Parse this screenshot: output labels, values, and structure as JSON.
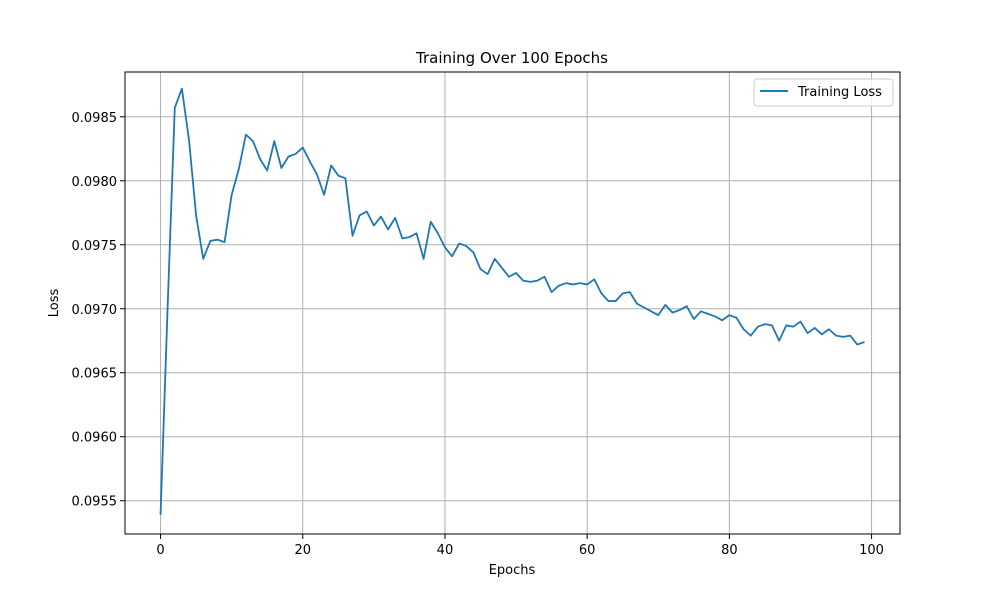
{
  "chart_data": {
    "type": "line",
    "title": "Training Over 100 Epochs",
    "xlabel": "Epochs",
    "ylabel": "Loss",
    "xlim": [
      -5,
      104
    ],
    "ylim": [
      0.09524,
      0.09885
    ],
    "xticks": [
      0,
      20,
      40,
      60,
      80,
      100
    ],
    "xtick_labels": [
      "0",
      "20",
      "40",
      "60",
      "80",
      "100"
    ],
    "yticks": [
      0.0955,
      0.096,
      0.0965,
      0.097,
      0.0975,
      0.098,
      0.0985
    ],
    "ytick_labels": [
      "0.0955",
      "0.0960",
      "0.0965",
      "0.0970",
      "0.0975",
      "0.0980",
      "0.0985"
    ],
    "grid": true,
    "legend_position": "top-right",
    "series": [
      {
        "name": "Training Loss",
        "color": "#1f77b4",
        "x": [
          0,
          1,
          2,
          3,
          4,
          5,
          6,
          7,
          8,
          9,
          10,
          11,
          12,
          13,
          14,
          15,
          16,
          17,
          18,
          19,
          20,
          21,
          22,
          23,
          24,
          25,
          26,
          27,
          28,
          29,
          30,
          31,
          32,
          33,
          34,
          35,
          36,
          37,
          38,
          39,
          40,
          41,
          42,
          43,
          44,
          45,
          46,
          47,
          48,
          49,
          50,
          51,
          52,
          53,
          54,
          55,
          56,
          57,
          58,
          59,
          60,
          61,
          62,
          63,
          64,
          65,
          66,
          67,
          68,
          69,
          70,
          71,
          72,
          73,
          74,
          75,
          76,
          77,
          78,
          79,
          80,
          81,
          82,
          83,
          84,
          85,
          86,
          87,
          88,
          89,
          90,
          91,
          92,
          93,
          94,
          95,
          96,
          97,
          98,
          99
        ],
        "values": [
          0.09539,
          0.09702,
          0.09857,
          0.09872,
          0.09832,
          0.09773,
          0.09739,
          0.09753,
          0.09754,
          0.09752,
          0.09789,
          0.09809,
          0.09836,
          0.09831,
          0.09817,
          0.09808,
          0.09831,
          0.0981,
          0.09819,
          0.09821,
          0.09826,
          0.09815,
          0.09805,
          0.09789,
          0.09812,
          0.09804,
          0.09802,
          0.09757,
          0.09773,
          0.09776,
          0.09765,
          0.09772,
          0.09762,
          0.09771,
          0.09755,
          0.09756,
          0.09759,
          0.09739,
          0.09768,
          0.09759,
          0.09748,
          0.09741,
          0.09751,
          0.09749,
          0.09744,
          0.09731,
          0.09727,
          0.09739,
          0.09732,
          0.09725,
          0.09728,
          0.09722,
          0.09721,
          0.09722,
          0.09725,
          0.09713,
          0.09718,
          0.0972,
          0.09719,
          0.0972,
          0.09719,
          0.09723,
          0.09712,
          0.09706,
          0.09706,
          0.09712,
          0.09713,
          0.09704,
          0.09701,
          0.09698,
          0.09695,
          0.09703,
          0.09697,
          0.09699,
          0.09702,
          0.09692,
          0.09698,
          0.09696,
          0.09694,
          0.09691,
          0.09695,
          0.09693,
          0.09684,
          0.09679,
          0.09686,
          0.09688,
          0.09687,
          0.09675,
          0.09687,
          0.09686,
          0.0969,
          0.09681,
          0.09685,
          0.0968,
          0.09684,
          0.09679,
          0.09678,
          0.09679,
          0.09672,
          0.09674
        ]
      }
    ]
  }
}
